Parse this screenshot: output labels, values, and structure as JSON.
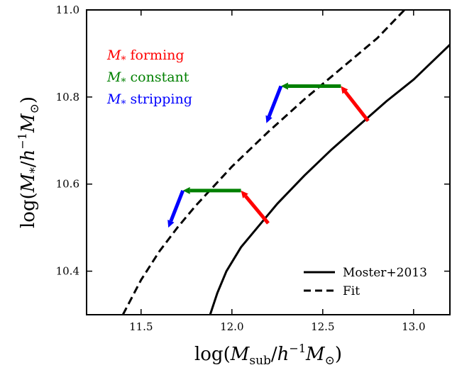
{
  "chart_data": {
    "type": "line",
    "xlabel": "log(M_sub/h^-1 M_⊙)",
    "ylabel": "log(M_*/h^-1 M_⊙)",
    "xlim": [
      11.2,
      13.2
    ],
    "ylim": [
      10.3,
      11.0
    ],
    "xticks": [
      11.5,
      12.0,
      12.5,
      13.0
    ],
    "xtick_labels": [
      "11.5",
      "12.0",
      "12.5",
      "13.0"
    ],
    "yticks": [
      10.4,
      10.6,
      10.8,
      11.0
    ],
    "ytick_labels": [
      "10.4",
      "10.6",
      "10.8",
      "11.0"
    ],
    "grid": false,
    "legend_position": "bottom-right",
    "series": [
      {
        "name": "Moster+2013",
        "style": "solid",
        "color": "#000000",
        "x": [
          11.88,
          11.92,
          11.97,
          12.05,
          12.15,
          12.25,
          12.4,
          12.55,
          12.7,
          12.85,
          13.0,
          13.2
        ],
        "y": [
          10.3,
          10.35,
          10.4,
          10.455,
          10.505,
          10.555,
          10.62,
          10.68,
          10.735,
          10.79,
          10.84,
          10.92
        ]
      },
      {
        "name": "Fit",
        "style": "dashed",
        "color": "#000000",
        "x": [
          11.4,
          11.45,
          11.5,
          11.6,
          11.7,
          11.8,
          11.9,
          12.0,
          12.2,
          12.4,
          12.6,
          12.8,
          12.95
        ],
        "y": [
          10.3,
          10.34,
          10.38,
          10.445,
          10.5,
          10.55,
          10.595,
          10.64,
          10.72,
          10.795,
          10.865,
          10.935,
          11.0
        ]
      }
    ],
    "arrows": [
      {
        "kind": "forming",
        "color": "#ff0000",
        "from": [
          12.2,
          10.51
        ],
        "to": [
          12.05,
          10.585
        ]
      },
      {
        "kind": "constant",
        "color": "#008000",
        "from": [
          12.05,
          10.585
        ],
        "to": [
          11.73,
          10.585
        ]
      },
      {
        "kind": "stripping",
        "color": "#0000ff",
        "from": [
          11.73,
          10.585
        ],
        "to": [
          11.65,
          10.5
        ]
      },
      {
        "kind": "forming",
        "color": "#ff0000",
        "from": [
          12.75,
          10.745
        ],
        "to": [
          12.6,
          10.825
        ]
      },
      {
        "kind": "constant",
        "color": "#008000",
        "from": [
          12.6,
          10.825
        ],
        "to": [
          12.27,
          10.825
        ]
      },
      {
        "kind": "stripping",
        "color": "#0000ff",
        "from": [
          12.27,
          10.825
        ],
        "to": [
          12.19,
          10.74
        ]
      }
    ],
    "annotations": [
      {
        "symbol": "M",
        "subscript": "*",
        "text": " forming",
        "color": "#ff0000"
      },
      {
        "symbol": "M",
        "subscript": "*",
        "text": " constant",
        "color": "#008000"
      },
      {
        "symbol": "M",
        "subscript": "*",
        "text": " stripping",
        "color": "#0000ff"
      }
    ]
  }
}
